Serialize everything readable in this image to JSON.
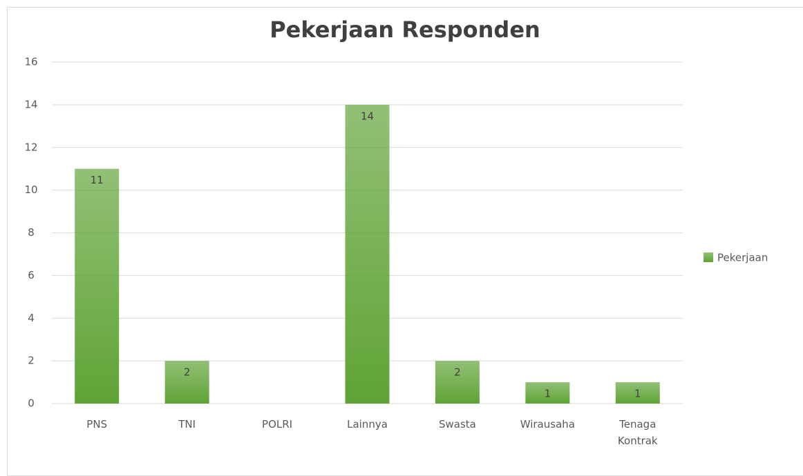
{
  "chart_data": {
    "type": "bar",
    "title": "Pekerjaan Responden",
    "categories": [
      "PNS",
      "TNI",
      "POLRI",
      "Lainnya",
      "Swasta",
      "Wirausaha",
      "Tenaga Kontrak"
    ],
    "series": [
      {
        "name": "Pekerjaan",
        "color": "#5fa335",
        "values": [
          11,
          2,
          null,
          14,
          2,
          1,
          1
        ]
      }
    ],
    "ylim": [
      0,
      16
    ],
    "yticks": [
      0,
      2,
      4,
      6,
      8,
      10,
      12,
      14,
      16
    ],
    "grid": true,
    "legend": "right"
  }
}
